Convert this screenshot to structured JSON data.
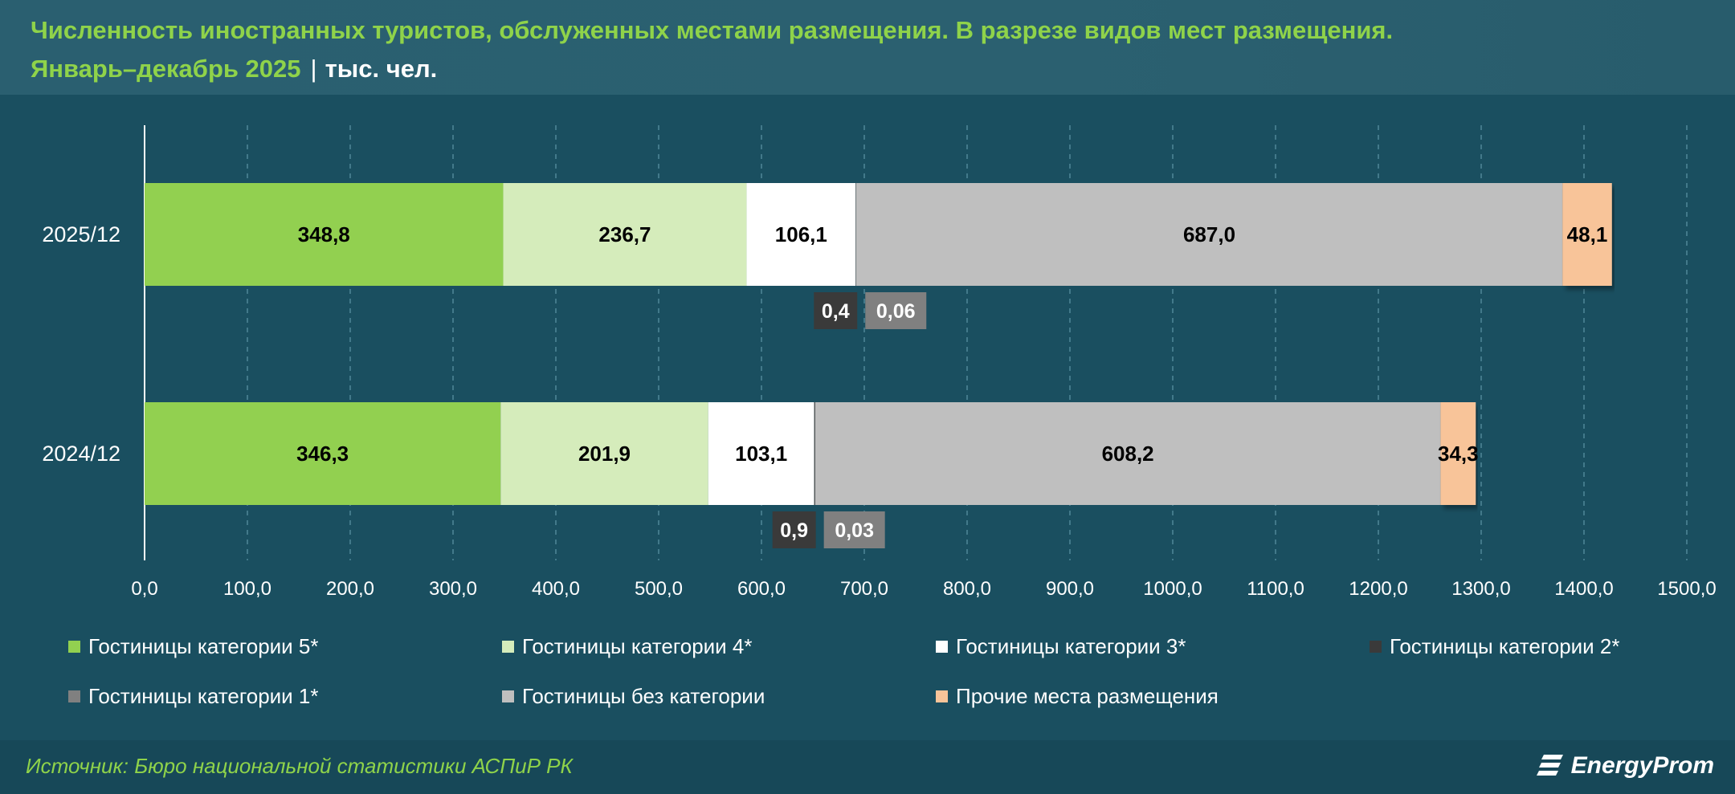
{
  "title": {
    "line1": "Численность иностранных туристов, обслуженных местами размещения. В разрезе видов мест размещения.",
    "period": "Январь–декабрь 2025",
    "separator": "|",
    "unit": "тыс. чел."
  },
  "source": "Источник: Бюро национальной статистики АСПиР РК",
  "logo_text": "EnergyProm",
  "chart_data": {
    "type": "bar",
    "orientation": "horizontal",
    "stacked": true,
    "categories": [
      "2025/12",
      "2024/12"
    ],
    "xlim": [
      0,
      1500
    ],
    "x_ticks": [
      "0,0",
      "100,0",
      "200,0",
      "300,0",
      "400,0",
      "500,0",
      "600,0",
      "700,0",
      "800,0",
      "900,0",
      "1000,0",
      "1100,0",
      "1200,0",
      "1300,0",
      "1400,0",
      "1500,0"
    ],
    "grid": "vertical-dashed",
    "legend_position": "bottom",
    "series": [
      {
        "name": "Гостиницы категории 5*",
        "color": "#92d050",
        "values": [
          348.8,
          346.3
        ],
        "labels": [
          "348,8",
          "346,3"
        ]
      },
      {
        "name": "Гостиницы категории 4*",
        "color": "#d5ecbb",
        "values": [
          236.7,
          201.9
        ],
        "labels": [
          "236,7",
          "201,9"
        ]
      },
      {
        "name": "Гостиницы категории 3*",
        "color": "#ffffff",
        "values": [
          106.1,
          103.1
        ],
        "labels": [
          "106,1",
          "103,1"
        ]
      },
      {
        "name": "Гостиницы категории 2*",
        "color": "#3a3a3a",
        "values": [
          0.4,
          0.9
        ],
        "labels": [
          "0,4",
          "0,9"
        ]
      },
      {
        "name": "Гостиницы категории 1*",
        "color": "#808080",
        "values": [
          0.06,
          0.03
        ],
        "labels": [
          "0,06",
          "0,03"
        ]
      },
      {
        "name": "Гостиницы без категории",
        "color": "#bfbfbf",
        "values": [
          687.0,
          608.2
        ],
        "labels": [
          "687,0",
          "608,2"
        ]
      },
      {
        "name": "Прочие места размещения",
        "color": "#f8c499",
        "values": [
          48.1,
          34.3
        ],
        "labels": [
          "48,1",
          "34,3"
        ]
      }
    ]
  }
}
